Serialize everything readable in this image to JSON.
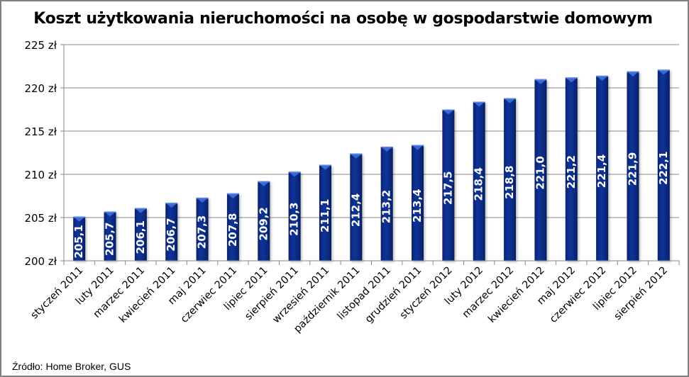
{
  "chart_data": {
    "type": "bar",
    "title": "Koszt użytkowania nieruchomości na osobę w gospodarstwie domowym",
    "xlabel": "",
    "ylabel": "",
    "ylim": [
      200,
      225
    ],
    "yticks": [
      200,
      205,
      210,
      215,
      220,
      225
    ],
    "ytick_labels": [
      "200 zł",
      "205 zł",
      "210 zł",
      "215 zł",
      "220 zł",
      "225 zł"
    ],
    "grid": true,
    "legend": "none",
    "bar_color": "#0B2E8F",
    "categories": [
      "styczeń 2011",
      "luty 2011",
      "marzec 2011",
      "kwiecień 2011",
      "maj 2011",
      "czerwiec 2011",
      "lipiec 2011",
      "sierpień 2011",
      "wrzesień 2011",
      "październik 2011",
      "listopad 2011",
      "grudzień 2011",
      "styczeń 2012",
      "luty 2012",
      "marzec 2012",
      "kwiecień 2012",
      "maj 2012",
      "czerwiec 2012",
      "lipiec 2012",
      "sierpień 2012"
    ],
    "values": [
      205.1,
      205.7,
      206.1,
      206.7,
      207.3,
      207.8,
      209.2,
      210.3,
      211.1,
      212.4,
      213.2,
      213.4,
      217.5,
      218.4,
      218.8,
      221.0,
      221.2,
      221.4,
      221.9,
      222.1
    ],
    "data_labels": [
      "205,1",
      "205,7",
      "206,1",
      "206,7",
      "207,3",
      "207,8",
      "209,2",
      "210,3",
      "211,1",
      "212,4",
      "213,2",
      "213,4",
      "217,5",
      "218,4",
      "218,8",
      "221,0",
      "221,2",
      "221,4",
      "221,9",
      "222,1"
    ]
  },
  "footer": {
    "source": "Źródło: Home Broker, GUS"
  }
}
